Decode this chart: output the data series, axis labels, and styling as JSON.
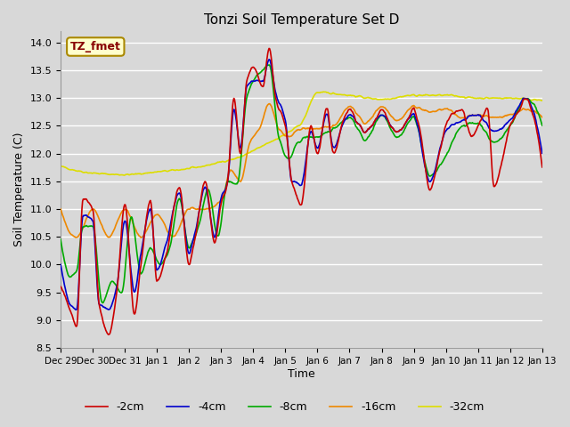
{
  "title": "Tonzi Soil Temperature Set D",
  "xlabel": "Time",
  "ylabel": "Soil Temperature (C)",
  "ylim": [
    8.5,
    14.2
  ],
  "bg_color": "#d8d8d8",
  "plot_bg_color": "#d8d8d8",
  "grid_color": "#ffffff",
  "series_colors": {
    "2cm": "#cc0000",
    "4cm": "#0000cc",
    "8cm": "#00aa00",
    "16cm": "#ee8800",
    "32cm": "#dddd00"
  },
  "legend_label": "TZ_fmet",
  "legend_box_facecolor": "#ffffcc",
  "legend_box_edgecolor": "#aa8800",
  "x_tick_labels": [
    "Dec 29",
    "Dec 30",
    "Dec 31",
    "Jan 1",
    "Jan 2",
    "Jan 3",
    "Jan 4",
    "Jan 5",
    "Jan 6",
    "Jan 7",
    "Jan 8",
    "Jan 9",
    "Jan 10",
    "Jan 11",
    "Jan 12",
    "Jan 13"
  ],
  "line_width": 1.2,
  "yticks": [
    8.5,
    9.0,
    9.5,
    10.0,
    10.5,
    11.0,
    11.5,
    12.0,
    12.5,
    13.0,
    13.5,
    14.0
  ]
}
